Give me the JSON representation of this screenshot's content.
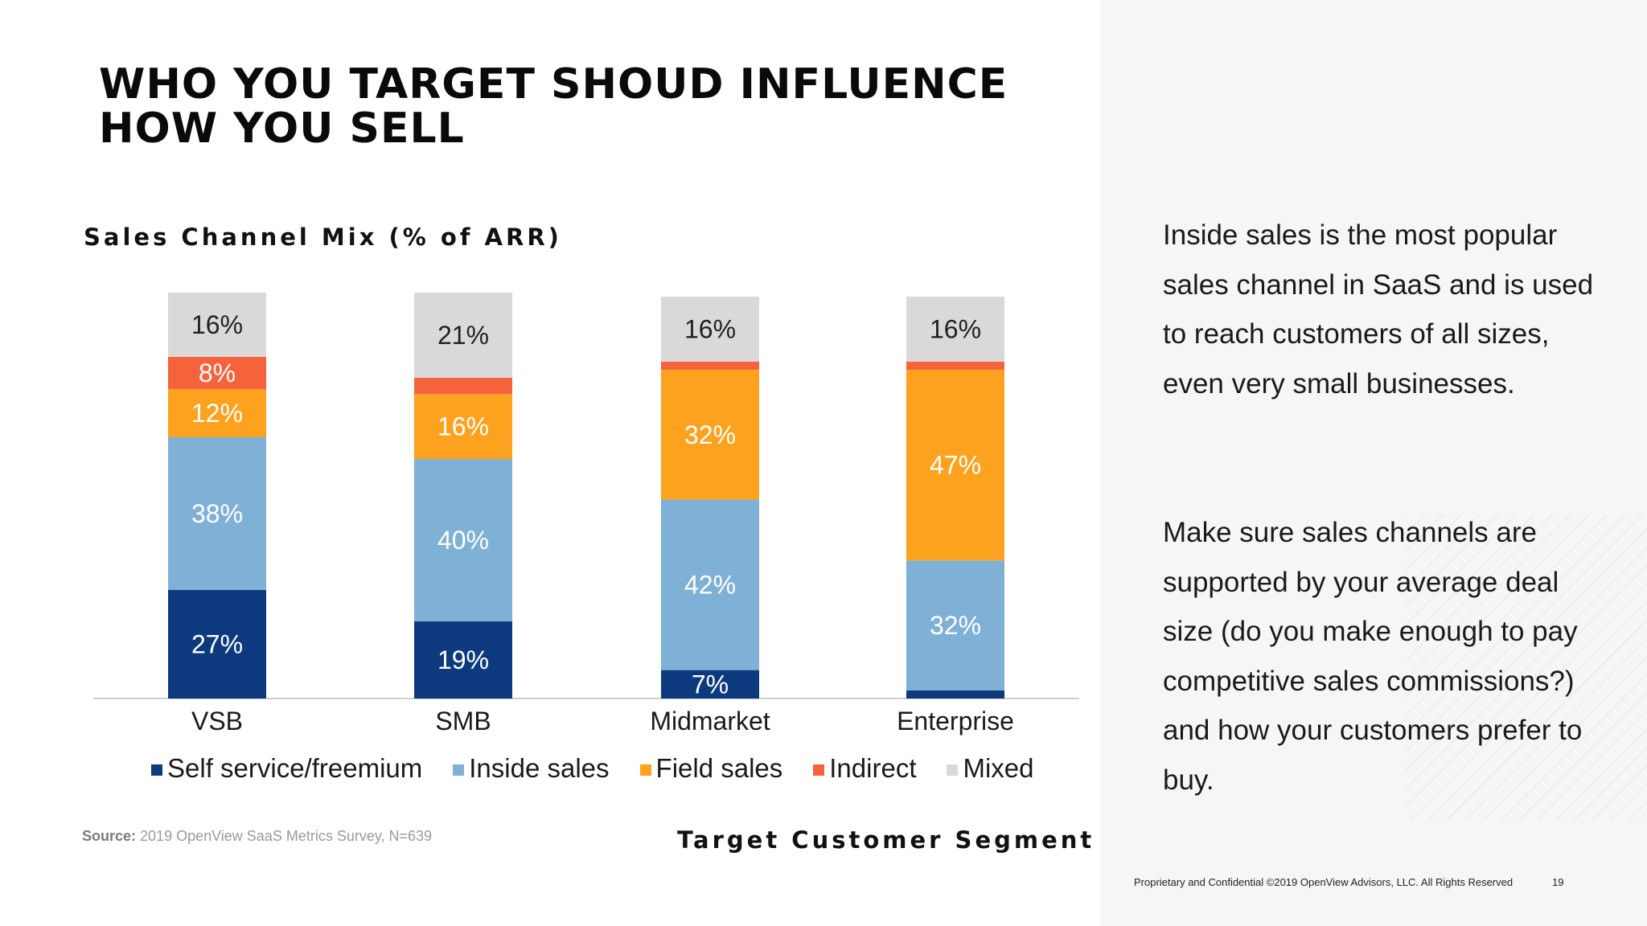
{
  "slide": {
    "title_line1": "WHO YOU TARGET SHOUD INFLUENCE",
    "title_line2": "HOW YOU SELL",
    "source_label": "Source:",
    "source_text": " 2019 OpenView SaaS Metrics Survey, N=639",
    "note_paragraph1": "Inside sales is the most popular sales channel in SaaS and is used to reach customers of all sizes, even very small businesses.",
    "note_paragraph2": "Make sure sales channels are supported by your average deal size (do you make enough to pay competitive sales commissions?) and how your customers prefer to buy.",
    "footer": "Proprietary and Confidential ©2019 OpenView Advisors, LLC. All Rights Reserved",
    "page_number": "19"
  },
  "chart_data": {
    "type": "bar",
    "stacked": true,
    "title": "Sales Channel Mix (% of ARR)",
    "xlabel": "Target Customer Segment",
    "ylabel": "",
    "ylim": [
      0,
      100
    ],
    "grid": false,
    "legend_position": "bottom",
    "categories": [
      "VSB",
      "SMB",
      "Midmarket",
      "Enterprise"
    ],
    "series": [
      {
        "name": "Self service/freemium",
        "color": "#0d3a7e",
        "values": [
          27,
          19,
          7,
          2
        ],
        "labels": [
          "27%",
          "19%",
          "7%",
          ""
        ]
      },
      {
        "name": "Inside sales",
        "color": "#7fb0d6",
        "values": [
          38,
          40,
          42,
          32
        ],
        "labels": [
          "38%",
          "40%",
          "42%",
          "32%"
        ]
      },
      {
        "name": "Field sales",
        "color": "#fca21e",
        "values": [
          12,
          16,
          32,
          47
        ],
        "labels": [
          "12%",
          "16%",
          "32%",
          "47%"
        ]
      },
      {
        "name": "Indirect",
        "color": "#f5623b",
        "values": [
          8,
          4,
          2,
          2
        ],
        "labels": [
          "8%",
          "",
          "",
          ""
        ]
      },
      {
        "name": "Mixed",
        "color": "#d9d9d9",
        "values": [
          16,
          21,
          16,
          16
        ],
        "labels": [
          "16%",
          "21%",
          "16%",
          "16%"
        ]
      }
    ]
  }
}
